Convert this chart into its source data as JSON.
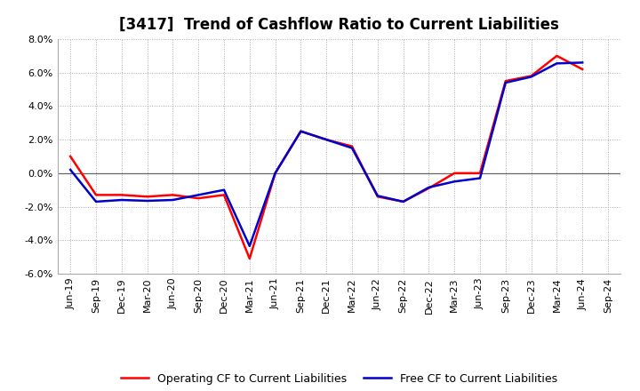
{
  "title": "[3417]  Trend of Cashflow Ratio to Current Liabilities",
  "labels": [
    "Jun-19",
    "Sep-19",
    "Dec-19",
    "Mar-20",
    "Jun-20",
    "Sep-20",
    "Dec-20",
    "Mar-21",
    "Jun-21",
    "Sep-21",
    "Dec-21",
    "Mar-22",
    "Jun-22",
    "Sep-22",
    "Dec-22",
    "Mar-23",
    "Jun-23",
    "Sep-23",
    "Dec-23",
    "Mar-24",
    "Jun-24",
    "Sep-24"
  ],
  "operating_cf": [
    1.0,
    -1.3,
    -1.3,
    -1.4,
    -1.3,
    -1.5,
    -1.3,
    -5.1,
    0.0,
    2.5,
    2.0,
    1.6,
    -1.4,
    -1.7,
    -0.9,
    0.0,
    0.0,
    5.5,
    5.8,
    7.0,
    6.2,
    null
  ],
  "free_cf": [
    0.2,
    -1.7,
    -1.6,
    -1.65,
    -1.6,
    -1.3,
    -1.0,
    -4.35,
    0.0,
    2.5,
    2.0,
    1.5,
    -1.35,
    -1.7,
    -0.85,
    -0.5,
    -0.3,
    5.4,
    5.75,
    6.55,
    6.6,
    null
  ],
  "ylim": [
    -6.0,
    8.0
  ],
  "yticks": [
    -6.0,
    -4.0,
    -2.0,
    0.0,
    2.0,
    4.0,
    6.0,
    8.0
  ],
  "operating_cf_color": "#ff0000",
  "free_cf_color": "#0000cc",
  "bg_color": "#ffffff",
  "plot_bg_color": "#ffffff",
  "grid_color": "#aaaaaa",
  "legend_operating": "Operating CF to Current Liabilities",
  "legend_free": "Free CF to Current Liabilities",
  "title_fontsize": 12,
  "tick_fontsize": 8,
  "legend_fontsize": 9
}
